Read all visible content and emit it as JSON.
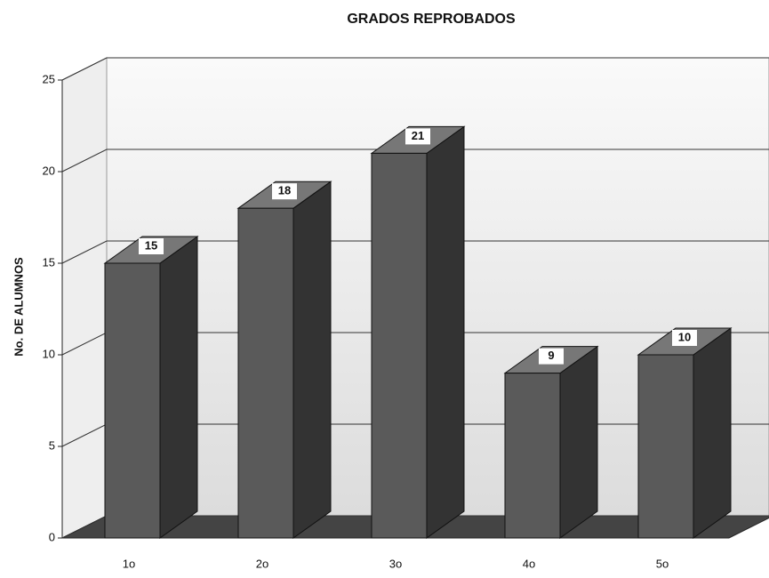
{
  "chart_data": {
    "type": "bar3d",
    "title": "GRADOS REPROBADOS",
    "y_label": "No. DE ALUMNOS",
    "categories": [
      "1o",
      "2o",
      "3o",
      "4o",
      "5o"
    ],
    "values": [
      15,
      18,
      21,
      9,
      10
    ],
    "color": "#5a5a5a",
    "ylim": [
      0,
      25
    ],
    "yticks": [
      0,
      5,
      10,
      15,
      20,
      25
    ],
    "grid": true
  }
}
